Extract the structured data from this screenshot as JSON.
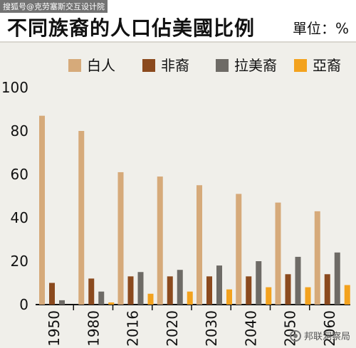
{
  "header": {
    "title": "不同族裔的人口佔美國比例",
    "unit_label": "單位：%"
  },
  "watermarks": {
    "top_left": "搜狐号@克劳塞斯交互设计院",
    "bottom_right": "邦联洞察局"
  },
  "colors": {
    "white": "#d6aa7a",
    "black": "#8b4a1e",
    "hispanic": "#6e6b66",
    "asian": "#f3a21e"
  },
  "chart_data": {
    "type": "bar",
    "title": "不同族裔的人口佔美國比例",
    "xlabel": "",
    "ylabel": "單位：%",
    "ylim": [
      0,
      100
    ],
    "yticks": [
      0,
      20,
      40,
      60,
      80,
      100
    ],
    "grid": false,
    "legend_position": "top",
    "categories": [
      "1950",
      "1980",
      "2016",
      "2020",
      "2030",
      "2040",
      "2050",
      "2060"
    ],
    "series": [
      {
        "name": "白人",
        "color": "#d6aa7a",
        "values": [
          87,
          80,
          61,
          59,
          55,
          51,
          47,
          43
        ]
      },
      {
        "name": "非裔",
        "color": "#8b4a1e",
        "values": [
          10,
          12,
          13,
          13,
          13,
          13,
          14,
          14
        ]
      },
      {
        "name": "拉美裔",
        "color": "#6e6b66",
        "values": [
          2,
          6,
          15,
          16,
          18,
          20,
          22,
          24
        ]
      },
      {
        "name": "亞裔",
        "color": "#f3a21e",
        "values": [
          0,
          1,
          5,
          6,
          7,
          8,
          8,
          9
        ]
      }
    ]
  }
}
